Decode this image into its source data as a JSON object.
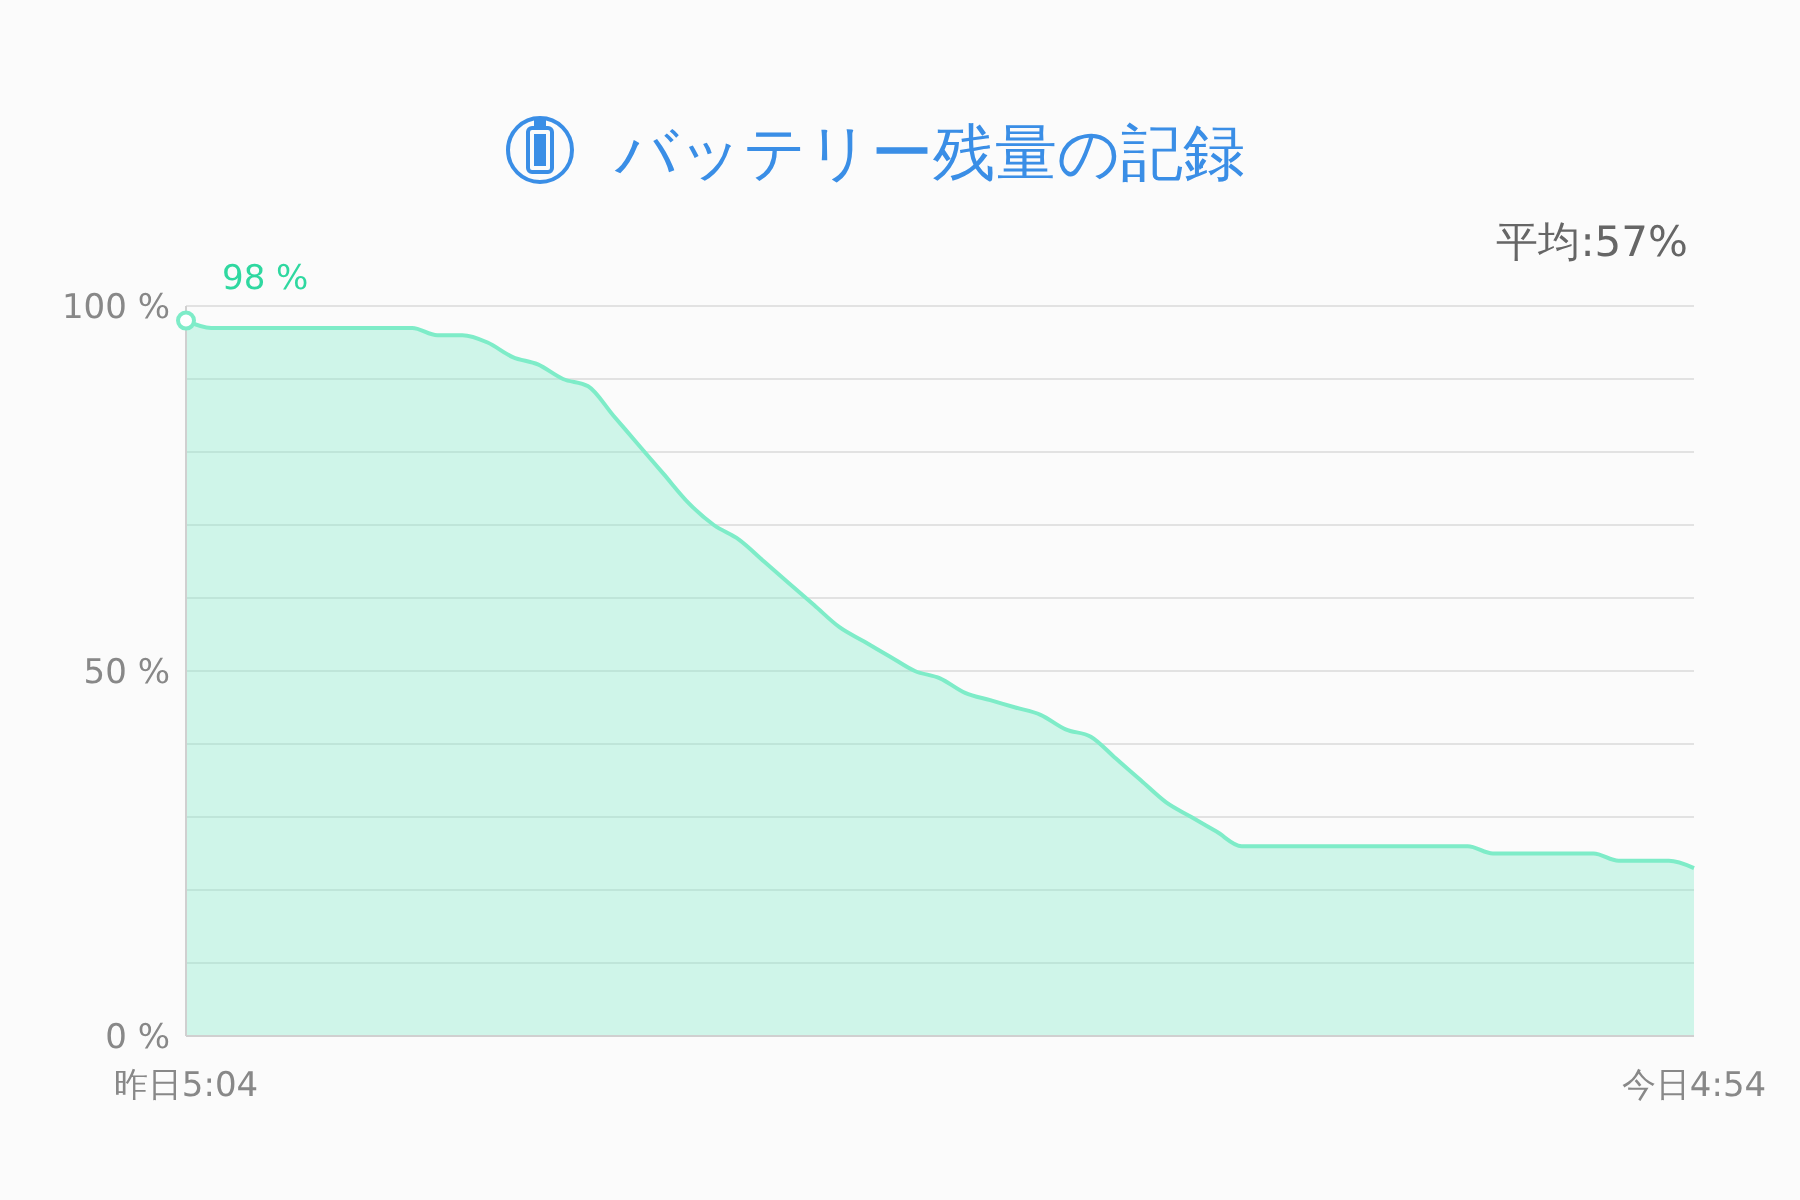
{
  "chart_data": {
    "type": "area",
    "title": "バッテリー残量の記録",
    "categories": [
      "昨日5:04",
      null,
      null,
      null,
      null,
      null,
      null,
      null,
      null,
      null,
      null,
      null,
      null,
      null,
      null,
      null,
      null,
      null,
      null,
      null,
      null,
      null,
      null,
      null,
      null,
      null,
      null,
      null,
      null,
      null,
      null,
      null,
      null,
      null,
      null,
      null,
      null,
      null,
      null,
      null,
      null,
      null,
      null,
      null,
      null,
      null,
      null,
      null,
      null,
      null,
      null,
      null,
      null,
      null,
      null,
      null,
      null,
      null,
      null,
      null,
      "今日4:54"
    ],
    "series": [
      {
        "color": "#7eecc8",
        "values": [
          98,
          97,
          97,
          97,
          97,
          97,
          97,
          97,
          97,
          97,
          96,
          96,
          95,
          93,
          92,
          90,
          89,
          85,
          81,
          77,
          73,
          70,
          68,
          65,
          62,
          59,
          56,
          54,
          52,
          50,
          49,
          47,
          46,
          45,
          44,
          42,
          41,
          38,
          35,
          32,
          30,
          28,
          26,
          26,
          26,
          26,
          26,
          26,
          26,
          26,
          26,
          26,
          25,
          25,
          25,
          25,
          25,
          24,
          24,
          24,
          23
        ]
      }
    ],
    "ylim": [
      0,
      100
    ],
    "yticks": [
      {
        "value": 0,
        "label": "0 %"
      },
      {
        "value": 10,
        "label": null
      },
      {
        "value": 20,
        "label": null
      },
      {
        "value": 30,
        "label": null
      },
      {
        "value": 40,
        "label": null
      },
      {
        "value": 50,
        "label": "50 %"
      },
      {
        "value": 60,
        "label": null
      },
      {
        "value": 70,
        "label": null
      },
      {
        "value": 80,
        "label": null
      },
      {
        "value": 90,
        "label": null
      },
      {
        "value": 100,
        "label": "100 %"
      }
    ],
    "grid": "y",
    "annotations": [
      {
        "text": "98 %",
        "x": "昨日5:04",
        "y": 98
      },
      "平均:57%"
    ]
  }
}
